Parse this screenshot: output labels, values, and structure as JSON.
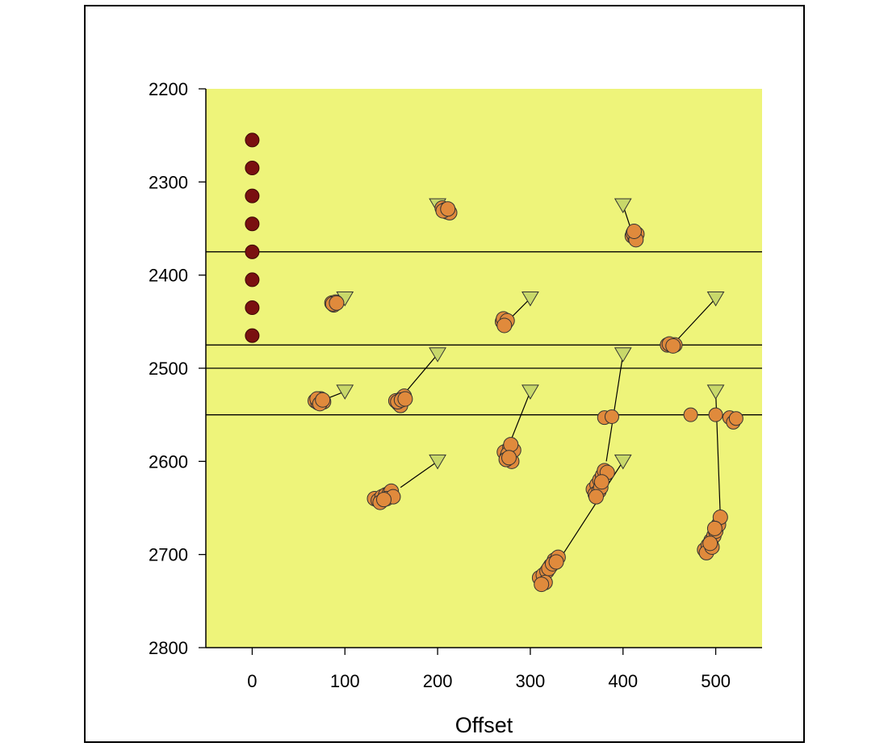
{
  "chart_data": {
    "type": "scatter",
    "title": "",
    "xlabel": "Offset",
    "ylabel": "",
    "xlim": [
      -50,
      550
    ],
    "ylim": [
      2800,
      2200
    ],
    "y_inverted": true,
    "x_ticks": [
      0,
      100,
      200,
      300,
      400,
      500
    ],
    "y_ticks": [
      2200,
      2300,
      2400,
      2500,
      2600,
      2700,
      2800
    ],
    "grid": false,
    "legend": null,
    "colors": {
      "plot_background": "#eef47a",
      "reference_point": "#7a1010",
      "source_marker": "#c8d86a",
      "estimate_point": "#e08a3c",
      "marker_outline": "#333333",
      "line": "#000000"
    },
    "horizontal_lines": [
      2375,
      2475,
      2500,
      2550
    ],
    "reference_points": [
      {
        "x": 0,
        "y": 2255
      },
      {
        "x": 0,
        "y": 2285
      },
      {
        "x": 0,
        "y": 2315
      },
      {
        "x": 0,
        "y": 2345
      },
      {
        "x": 0,
        "y": 2375
      },
      {
        "x": 0,
        "y": 2405
      },
      {
        "x": 0,
        "y": 2435
      },
      {
        "x": 0,
        "y": 2465
      }
    ],
    "groups": [
      {
        "source": {
          "x": 200,
          "y": 2325
        },
        "link_end": {
          "x": 208,
          "y": 2330
        },
        "points": [
          [
            205,
            2328
          ],
          [
            208,
            2330
          ],
          [
            210,
            2332
          ],
          [
            213,
            2333
          ],
          [
            206,
            2331
          ],
          [
            211,
            2329
          ]
        ]
      },
      {
        "source": {
          "x": 400,
          "y": 2325
        },
        "link_end": {
          "x": 410,
          "y": 2355
        },
        "points": [
          [
            410,
            2358
          ],
          [
            413,
            2360
          ],
          [
            415,
            2356
          ],
          [
            411,
            2355
          ],
          [
            414,
            2362
          ],
          [
            412,
            2353
          ]
        ]
      },
      {
        "source": {
          "x": 100,
          "y": 2425
        },
        "link_end": {
          "x": 93,
          "y": 2428
        },
        "points": [
          [
            86,
            2430
          ],
          [
            88,
            2432
          ],
          [
            90,
            2429
          ],
          [
            87,
            2431
          ],
          [
            91,
            2430
          ]
        ]
      },
      {
        "source": {
          "x": 300,
          "y": 2425
        },
        "link_end": {
          "x": 278,
          "y": 2447
        },
        "points": [
          [
            270,
            2450
          ],
          [
            273,
            2452
          ],
          [
            271,
            2447
          ],
          [
            275,
            2449
          ],
          [
            272,
            2454
          ]
        ]
      },
      {
        "source": {
          "x": 500,
          "y": 2425
        },
        "link_end": {
          "x": 458,
          "y": 2470
        },
        "points": [
          [
            448,
            2475
          ],
          [
            452,
            2475
          ],
          [
            456,
            2475
          ],
          [
            450,
            2474
          ],
          [
            454,
            2476
          ]
        ]
      },
      {
        "source": {
          "x": 100,
          "y": 2525
        },
        "link_end": {
          "x": 82,
          "y": 2532
        },
        "points": [
          [
            68,
            2535
          ],
          [
            71,
            2537
          ],
          [
            74,
            2533
          ],
          [
            77,
            2536
          ],
          [
            70,
            2533
          ],
          [
            73,
            2538
          ],
          [
            76,
            2534
          ]
        ]
      },
      {
        "source": {
          "x": 200,
          "y": 2485
        },
        "link_end": {
          "x": 166,
          "y": 2525
        },
        "points": [
          [
            155,
            2535
          ],
          [
            158,
            2538
          ],
          [
            162,
            2532
          ],
          [
            160,
            2540
          ],
          [
            164,
            2530
          ],
          [
            157,
            2536
          ],
          [
            161,
            2534
          ],
          [
            165,
            2533
          ]
        ]
      },
      {
        "source": {
          "x": 300,
          "y": 2525
        },
        "link_end": {
          "x": 280,
          "y": 2575
        },
        "points": [
          [
            272,
            2590
          ],
          [
            275,
            2595
          ],
          [
            278,
            2585
          ],
          [
            280,
            2600
          ],
          [
            276,
            2592
          ],
          [
            282,
            2588
          ],
          [
            274,
            2598
          ],
          [
            279,
            2582
          ],
          [
            277,
            2596
          ]
        ]
      },
      {
        "source": {
          "x": 400,
          "y": 2485
        },
        "link_end": {
          "x": 382,
          "y": 2600
        },
        "points": [
          [
            368,
            2630
          ],
          [
            372,
            2625
          ],
          [
            375,
            2620
          ],
          [
            370,
            2635
          ],
          [
            378,
            2615
          ],
          [
            374,
            2632
          ],
          [
            380,
            2610
          ],
          [
            376,
            2628
          ],
          [
            371,
            2638
          ],
          [
            383,
            2612
          ],
          [
            377,
            2622
          ]
        ]
      },
      {
        "source": {
          "x": 200,
          "y": 2600
        },
        "link_end": {
          "x": 160,
          "y": 2628
        },
        "points": [
          [
            132,
            2640
          ],
          [
            136,
            2642
          ],
          [
            140,
            2638
          ],
          [
            144,
            2636
          ],
          [
            148,
            2634
          ],
          [
            150,
            2632
          ],
          [
            145,
            2640
          ],
          [
            138,
            2644
          ],
          [
            152,
            2638
          ],
          [
            142,
            2641
          ]
        ]
      },
      {
        "source": {
          "x": 400,
          "y": 2600
        },
        "link_end": {
          "x": 335,
          "y": 2700
        },
        "points": [
          [
            310,
            2725
          ],
          [
            314,
            2722
          ],
          [
            318,
            2718
          ],
          [
            322,
            2712
          ],
          [
            326,
            2706
          ],
          [
            330,
            2703
          ],
          [
            316,
            2730
          ],
          [
            320,
            2715
          ],
          [
            324,
            2710
          ],
          [
            312,
            2732
          ],
          [
            328,
            2708
          ]
        ]
      },
      {
        "source": {
          "x": 500,
          "y": 2525
        },
        "link_end": {
          "x": 505,
          "y": 2660
        },
        "points": [
          [
            488,
            2695
          ],
          [
            492,
            2690
          ],
          [
            495,
            2685
          ],
          [
            498,
            2680
          ],
          [
            500,
            2675
          ],
          [
            503,
            2668
          ],
          [
            505,
            2660
          ],
          [
            490,
            2698
          ],
          [
            496,
            2692
          ],
          [
            499,
            2672
          ],
          [
            494,
            2688
          ]
        ]
      }
    ],
    "extra_points": [
      {
        "x": 380,
        "y": 2553
      },
      {
        "x": 388,
        "y": 2552
      },
      {
        "x": 473,
        "y": 2550
      },
      {
        "x": 500,
        "y": 2550
      },
      {
        "x": 515,
        "y": 2553
      },
      {
        "x": 519,
        "y": 2558
      },
      {
        "x": 522,
        "y": 2554
      }
    ]
  }
}
